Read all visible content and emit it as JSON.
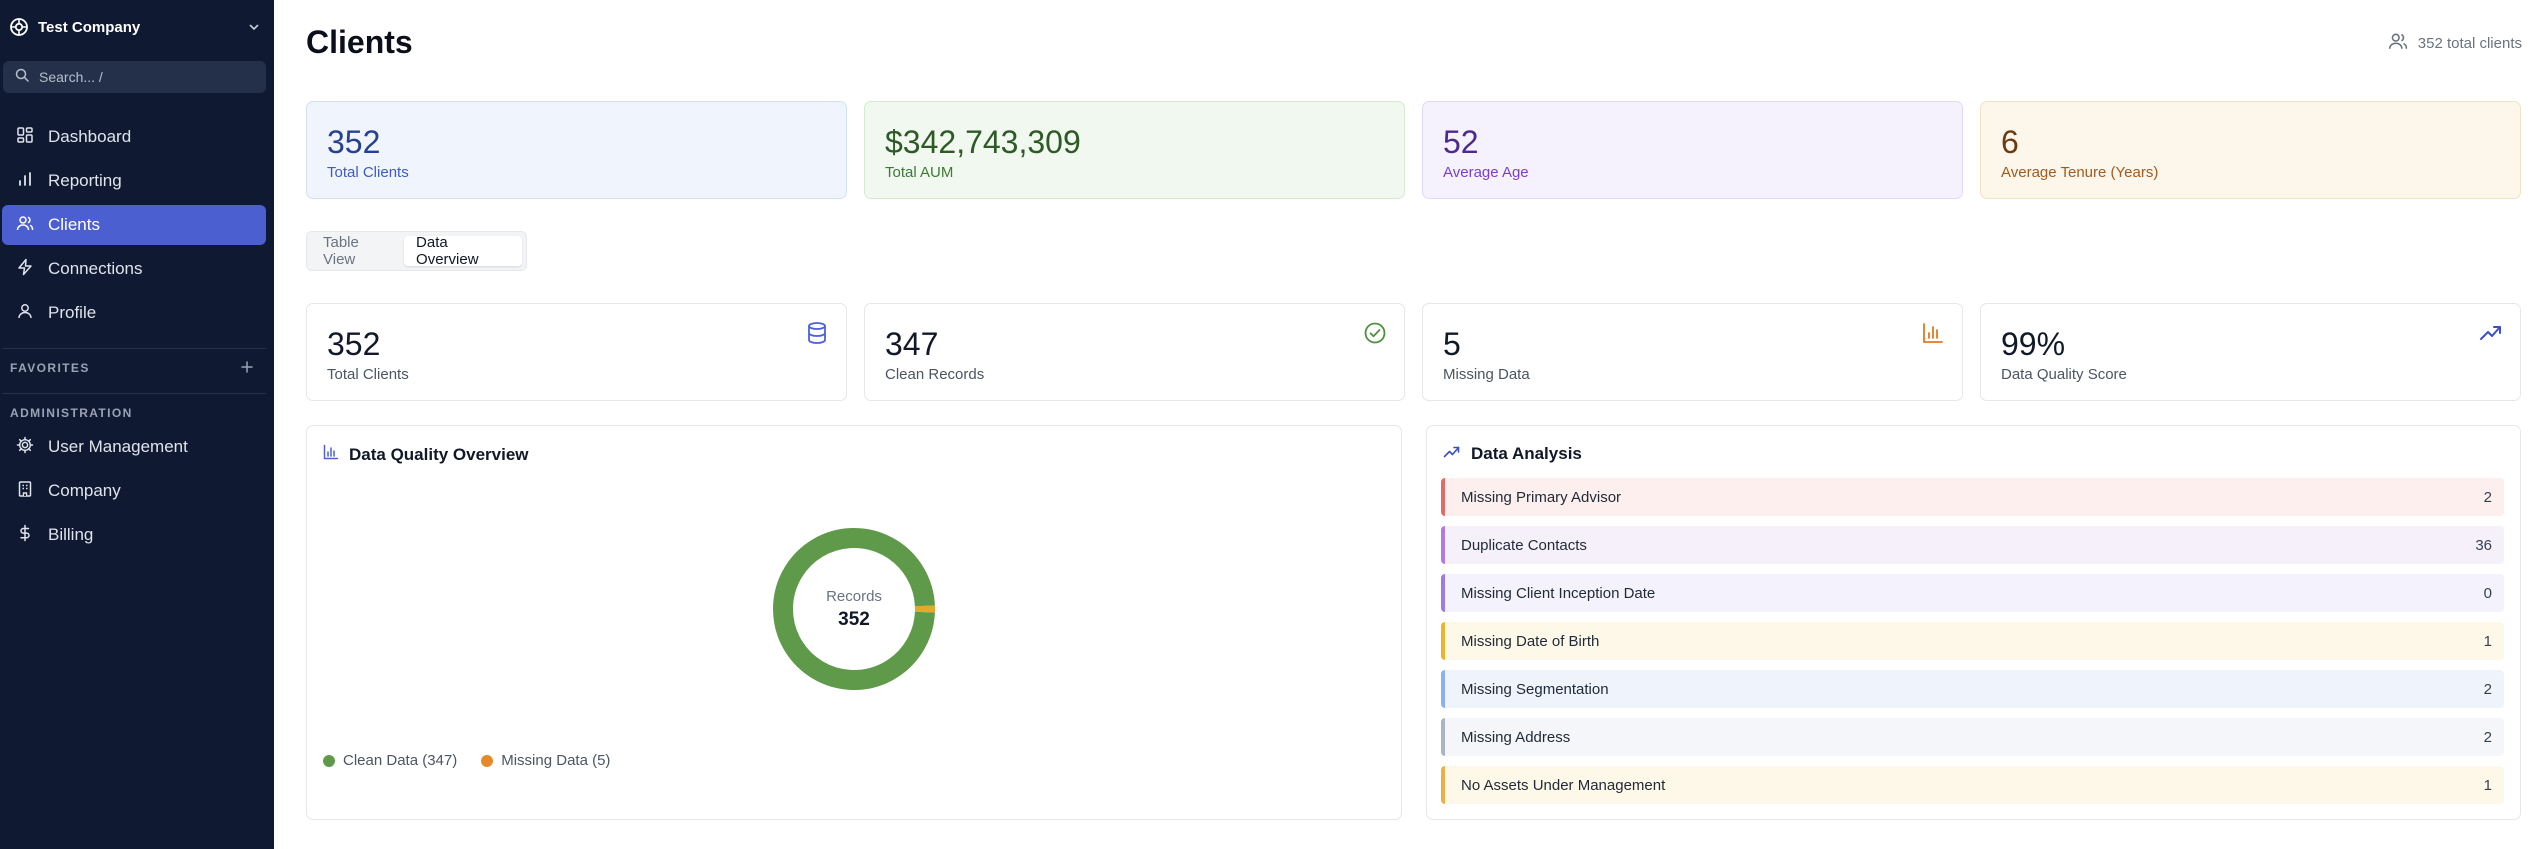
{
  "company": {
    "name": "Test Company"
  },
  "search": {
    "placeholder": "Search... /"
  },
  "nav": [
    {
      "label": "Dashboard",
      "icon": "dashboard-icon"
    },
    {
      "label": "Reporting",
      "icon": "bar-chart-icon"
    },
    {
      "label": "Clients",
      "icon": "users-icon",
      "active": true
    },
    {
      "label": "Connections",
      "icon": "lightning-icon"
    },
    {
      "label": "Profile",
      "icon": "user-icon"
    }
  ],
  "sections": {
    "favorites": "FAVORITES",
    "administration": "ADMINISTRATION"
  },
  "admin_nav": [
    {
      "label": "User Management",
      "icon": "gear-icon"
    },
    {
      "label": "Company",
      "icon": "building-icon"
    },
    {
      "label": "Billing",
      "icon": "dollar-icon"
    }
  ],
  "page": {
    "title": "Clients",
    "total_label": "352 total clients"
  },
  "stats": [
    {
      "value": "352",
      "caption": "Total Clients"
    },
    {
      "value": "$342,743,309",
      "caption": "Total AUM"
    },
    {
      "value": "52",
      "caption": "Average Age"
    },
    {
      "value": "6",
      "caption": "Average Tenure (Years)"
    }
  ],
  "tabs": [
    {
      "label": "Table View"
    },
    {
      "label": "Data Overview",
      "active": true
    }
  ],
  "kpis": [
    {
      "value": "352",
      "caption": "Total Clients",
      "icon": "database-icon"
    },
    {
      "value": "347",
      "caption": "Clean Records",
      "icon": "check-circle-icon"
    },
    {
      "value": "5",
      "caption": "Missing Data",
      "icon": "bar-chart-icon"
    },
    {
      "value": "99%",
      "caption": "Data Quality Score",
      "icon": "trending-up-icon"
    }
  ],
  "quality_panel": {
    "title": "Data Quality Overview",
    "center_label": "Records",
    "center_value": "352",
    "legend": [
      {
        "label": "Clean Data (347)",
        "color": "#5f9a4a"
      },
      {
        "label": "Missing Data (5)",
        "color": "#e58a2b"
      }
    ]
  },
  "chart_data": {
    "type": "pie",
    "title": "Data Quality Overview",
    "categories": [
      "Clean Data",
      "Missing Data"
    ],
    "values": [
      347,
      5
    ],
    "colors": [
      "#5f9a4a",
      "#e5a82b"
    ],
    "center_label": "Records",
    "center_value": 352
  },
  "analysis_panel": {
    "title": "Data Analysis",
    "items": [
      {
        "label": "Missing Primary Advisor",
        "count": "2",
        "bg": "#fcefee",
        "border": "#e06b6b"
      },
      {
        "label": "Duplicate Contacts",
        "count": "36",
        "bg": "#f6f0fb",
        "border": "#b17be0"
      },
      {
        "label": "Missing Client Inception Date",
        "count": "0",
        "bg": "#f4f2fc",
        "border": "#9a7ce4"
      },
      {
        "label": "Missing Date of Birth",
        "count": "1",
        "bg": "#fdf8e8",
        "border": "#e8b730"
      },
      {
        "label": "Missing Segmentation",
        "count": "2",
        "bg": "#eff4fc",
        "border": "#8fb0e8"
      },
      {
        "label": "Missing Address",
        "count": "2",
        "bg": "#f4f6f9",
        "border": "#a9b5c6"
      },
      {
        "label": "No Assets Under Management",
        "count": "1",
        "bg": "#fdf8e8",
        "border": "#eab04a"
      }
    ]
  }
}
